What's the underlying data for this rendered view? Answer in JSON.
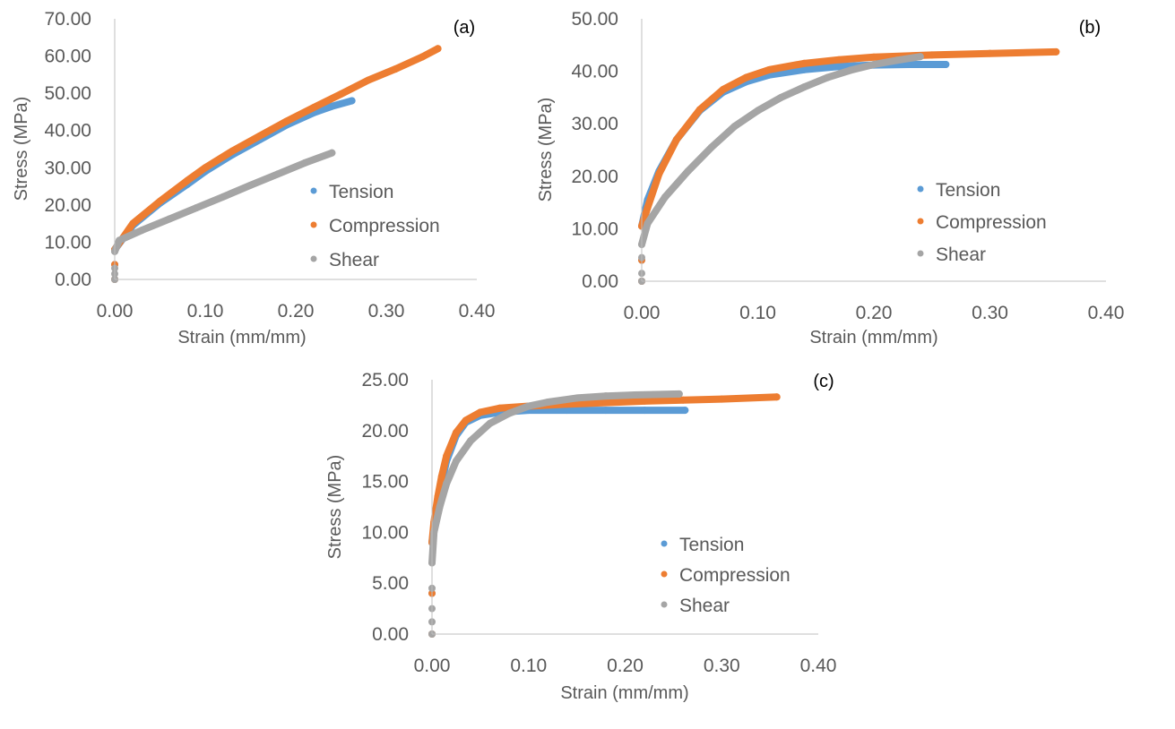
{
  "colors": {
    "tension": "#5B9BD5",
    "compression": "#ED7D31",
    "shear": "#A5A5A5",
    "axis": "#BFBFBF",
    "text": "#595959"
  },
  "chart_data": [
    {
      "type": "scatter",
      "panel_label": "(a)",
      "title": "",
      "xlabel": "Strain (mm/mm)",
      "ylabel": "Stress (MPa)",
      "xlim": [
        0,
        0.4
      ],
      "ylim": [
        0,
        70
      ],
      "x_ticks": [
        "0.00",
        "0.10",
        "0.20",
        "0.30",
        "0.40"
      ],
      "y_ticks": [
        "0.00",
        "10.00",
        "20.00",
        "30.00",
        "40.00",
        "50.00",
        "60.00",
        "70.00"
      ],
      "grid": false,
      "legend": "center-right",
      "legend_entries": [
        "Tension",
        "Compression",
        "Shear"
      ],
      "series": [
        {
          "name": "Tension",
          "x": [
            0,
            0,
            0,
            0.02,
            0.05,
            0.08,
            0.1,
            0.13,
            0.16,
            0.19,
            0.22,
            0.24,
            0.262
          ],
          "y": [
            0,
            4,
            8,
            14.5,
            20.5,
            25.5,
            29,
            33.5,
            37.5,
            41.5,
            44.8,
            46.5,
            48
          ]
        },
        {
          "name": "Compression",
          "x": [
            0,
            0,
            0,
            0.02,
            0.05,
            0.08,
            0.1,
            0.13,
            0.16,
            0.19,
            0.22,
            0.25,
            0.28,
            0.31,
            0.34,
            0.357
          ],
          "y": [
            0,
            4,
            8,
            15,
            21,
            26.5,
            30,
            34.5,
            38.5,
            42.5,
            46.2,
            49.8,
            53.5,
            56.5,
            59.8,
            62
          ]
        },
        {
          "name": "Shear",
          "x": [
            0,
            0,
            0,
            0,
            0.005,
            0.03,
            0.06,
            0.09,
            0.12,
            0.15,
            0.18,
            0.21,
            0.24
          ],
          "y": [
            0,
            1.5,
            3,
            7.5,
            10.5,
            13.2,
            16.2,
            19.2,
            22.2,
            25.3,
            28.3,
            31.3,
            34
          ]
        }
      ]
    },
    {
      "type": "scatter",
      "panel_label": "(b)",
      "title": "",
      "xlabel": "Strain (mm/mm)",
      "ylabel": "Stress (MPa)",
      "xlim": [
        0,
        0.4
      ],
      "ylim": [
        0,
        50
      ],
      "x_ticks": [
        "0.00",
        "0.10",
        "0.20",
        "0.30",
        "0.40"
      ],
      "y_ticks": [
        "0.00",
        "10.00",
        "20.00",
        "30.00",
        "40.00",
        "50.00"
      ],
      "grid": false,
      "legend": "center-right",
      "legend_entries": [
        "Tension",
        "Compression",
        "Shear"
      ],
      "series": [
        {
          "name": "Tension",
          "x": [
            0,
            0,
            0,
            0.005,
            0.015,
            0.03,
            0.05,
            0.07,
            0.09,
            0.11,
            0.14,
            0.17,
            0.2,
            0.23,
            0.262
          ],
          "y": [
            0,
            4,
            10.5,
            15.5,
            21,
            27,
            32.5,
            36,
            38,
            39.3,
            40.3,
            40.9,
            41.2,
            41.3,
            41.3
          ]
        },
        {
          "name": "Compression",
          "x": [
            0,
            0,
            0,
            0.005,
            0.015,
            0.03,
            0.05,
            0.07,
            0.09,
            0.11,
            0.14,
            0.17,
            0.2,
            0.25,
            0.3,
            0.357
          ],
          "y": [
            0,
            4,
            10.5,
            14,
            20.5,
            27,
            32.7,
            36.5,
            38.8,
            40.3,
            41.5,
            42.2,
            42.7,
            43.1,
            43.4,
            43.7
          ]
        },
        {
          "name": "Shear",
          "x": [
            0,
            0,
            0,
            0,
            0.005,
            0.02,
            0.04,
            0.06,
            0.08,
            0.1,
            0.12,
            0.14,
            0.16,
            0.18,
            0.2,
            0.22,
            0.24
          ],
          "y": [
            0,
            1.5,
            4.5,
            7,
            11,
            16,
            21,
            25.5,
            29.5,
            32.5,
            35,
            37,
            38.8,
            40.2,
            41.3,
            42.1,
            42.8
          ]
        }
      ]
    },
    {
      "type": "scatter",
      "panel_label": "(c)",
      "title": "",
      "xlabel": "Strain (mm/mm)",
      "ylabel": "Stress (MPa)",
      "xlim": [
        0,
        0.4
      ],
      "ylim": [
        0,
        25
      ],
      "x_ticks": [
        "0.00",
        "0.10",
        "0.20",
        "0.30",
        "0.40"
      ],
      "y_ticks": [
        "0.00",
        "5.00",
        "10.00",
        "15.00",
        "20.00",
        "25.00"
      ],
      "grid": false,
      "legend": "center-right",
      "legend_entries": [
        "Tension",
        "Compression",
        "Shear"
      ],
      "series": [
        {
          "name": "Tension",
          "x": [
            0,
            0,
            0,
            0.003,
            0.008,
            0.015,
            0.025,
            0.035,
            0.05,
            0.07,
            0.1,
            0.14,
            0.18,
            0.22,
            0.262
          ],
          "y": [
            0,
            4,
            9,
            11,
            14,
            17,
            19.5,
            20.8,
            21.5,
            21.8,
            22,
            22,
            22,
            22,
            22
          ]
        },
        {
          "name": "Compression",
          "x": [
            0,
            0,
            0,
            0.002,
            0.006,
            0.01,
            0.015,
            0.025,
            0.035,
            0.05,
            0.07,
            0.1,
            0.14,
            0.18,
            0.22,
            0.26,
            0.3,
            0.357
          ],
          "y": [
            0,
            4,
            9,
            11,
            13.5,
            15.5,
            17.5,
            19.8,
            21,
            21.8,
            22.2,
            22.4,
            22.6,
            22.75,
            22.9,
            23,
            23.1,
            23.3
          ]
        },
        {
          "name": "Shear",
          "x": [
            0,
            0,
            0,
            0,
            0,
            0.002,
            0.008,
            0.015,
            0.025,
            0.04,
            0.06,
            0.08,
            0.1,
            0.12,
            0.15,
            0.18,
            0.21,
            0.256
          ],
          "y": [
            0,
            1.2,
            2.5,
            4.5,
            7,
            10,
            12.5,
            14.8,
            17,
            19,
            20.7,
            21.7,
            22.4,
            22.8,
            23.2,
            23.4,
            23.5,
            23.6
          ]
        }
      ]
    }
  ]
}
